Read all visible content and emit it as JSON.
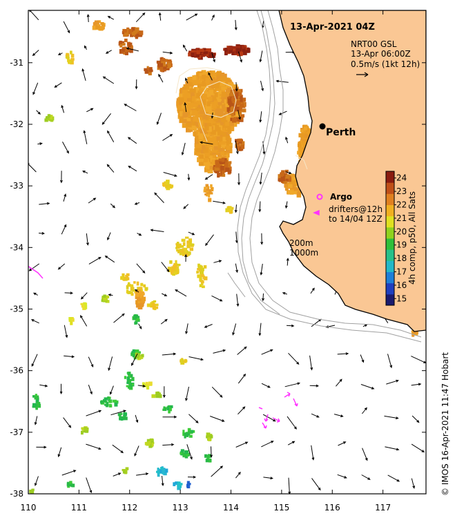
{
  "title": "13-Apr-2021 04Z",
  "product": {
    "line1": "NRT00 GSL",
    "line2": "13-Apr 06:00Z",
    "line3": "0.5m/s (1kt 12h)"
  },
  "city": {
    "name": "Perth",
    "lon": 115.86,
    "lat": -31.95
  },
  "argo": {
    "label": "Argo",
    "lon": 115.82,
    "lat": -33.12
  },
  "drifters": {
    "line1": "drifters@12h",
    "line2": "to 14/04 12Z"
  },
  "isobaths": {
    "line1": "200m",
    "line2": "1000m"
  },
  "colorbar": {
    "label": "4h comp, p50, All Sats",
    "min": 14.5,
    "max": 24.5,
    "ticks": [
      "15",
      "16",
      "17",
      "18",
      "19",
      "20",
      "21",
      "22",
      "23",
      "24"
    ],
    "colors": [
      "#1a1a6e",
      "#1f3fbf",
      "#1e7fd8",
      "#23b8c8",
      "#27c08a",
      "#2fbf3a",
      "#8fd21e",
      "#e0e020",
      "#f0b020",
      "#e08020",
      "#c05018",
      "#8a1c10"
    ]
  },
  "axes": {
    "x_ticks": [
      "110",
      "111",
      "112",
      "113",
      "114",
      "115",
      "116",
      "117"
    ],
    "y_ticks": [
      "-31",
      "-32",
      "-33",
      "-34",
      "-35",
      "-36",
      "-37",
      "-38"
    ],
    "lon_range": [
      110,
      117.85
    ],
    "lat_range": [
      -38,
      -30.15
    ]
  },
  "credit": "© IMOS 16-Apr-2021 11:47 Hobart",
  "colors": {
    "land": "#fac794",
    "coast": "#000000",
    "isobath": "#a0a0a0",
    "argo": "#ff33ff"
  }
}
